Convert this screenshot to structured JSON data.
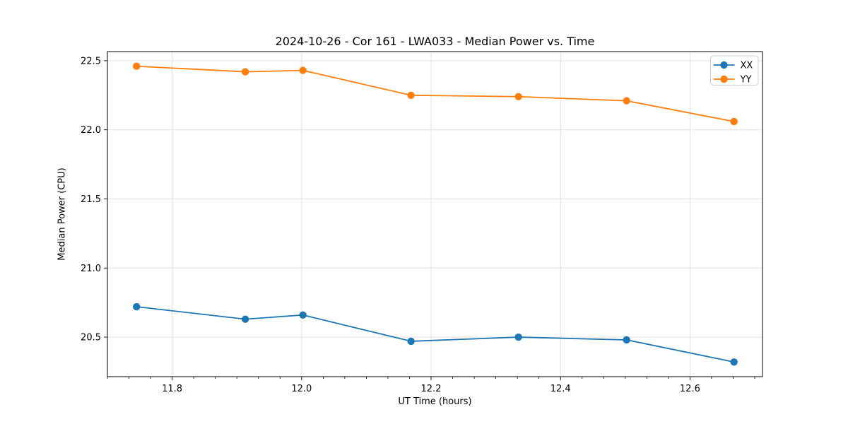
{
  "chart_data": {
    "type": "line",
    "title": "2024-10-26 - Cor 161 - LWA033 - Median Power vs. Time",
    "xlabel": "UT Time (hours)",
    "ylabel": "Median Power (CPU)",
    "xlim": [
      11.7,
      12.712
    ],
    "ylim": [
      20.214,
      22.566
    ],
    "x_tick_labels": [
      "11.8",
      "12.0",
      "12.2",
      "12.4",
      "12.6"
    ],
    "x_tick_values": [
      11.8,
      12.0,
      12.2,
      12.4,
      12.6
    ],
    "x_minor_step": 0.0333333,
    "y_tick_labels": [
      "20.5",
      "21.0",
      "21.5",
      "22.0",
      "22.5"
    ],
    "y_tick_values": [
      20.5,
      21.0,
      21.5,
      22.0,
      22.5
    ],
    "grid": "major-on",
    "grid_color": "#e0e0e0",
    "axis_color": "#000000",
    "background_color": "#ffffff",
    "legend": {
      "position": "upper-right",
      "entries": [
        {
          "label": "XX",
          "color": "#1f77b4"
        },
        {
          "label": "YY",
          "color": "#ff7f0e"
        }
      ]
    },
    "x": [
      11.745,
      11.913,
      12.002,
      12.169,
      12.335,
      12.502,
      12.668
    ],
    "series": [
      {
        "name": "XX",
        "color": "#1f77b4",
        "values": [
          20.72,
          20.63,
          20.66,
          20.47,
          20.5,
          20.48,
          20.32
        ]
      },
      {
        "name": "YY",
        "color": "#ff7f0e",
        "values": [
          22.46,
          22.42,
          22.43,
          22.25,
          22.24,
          22.21,
          22.06
        ]
      }
    ]
  }
}
